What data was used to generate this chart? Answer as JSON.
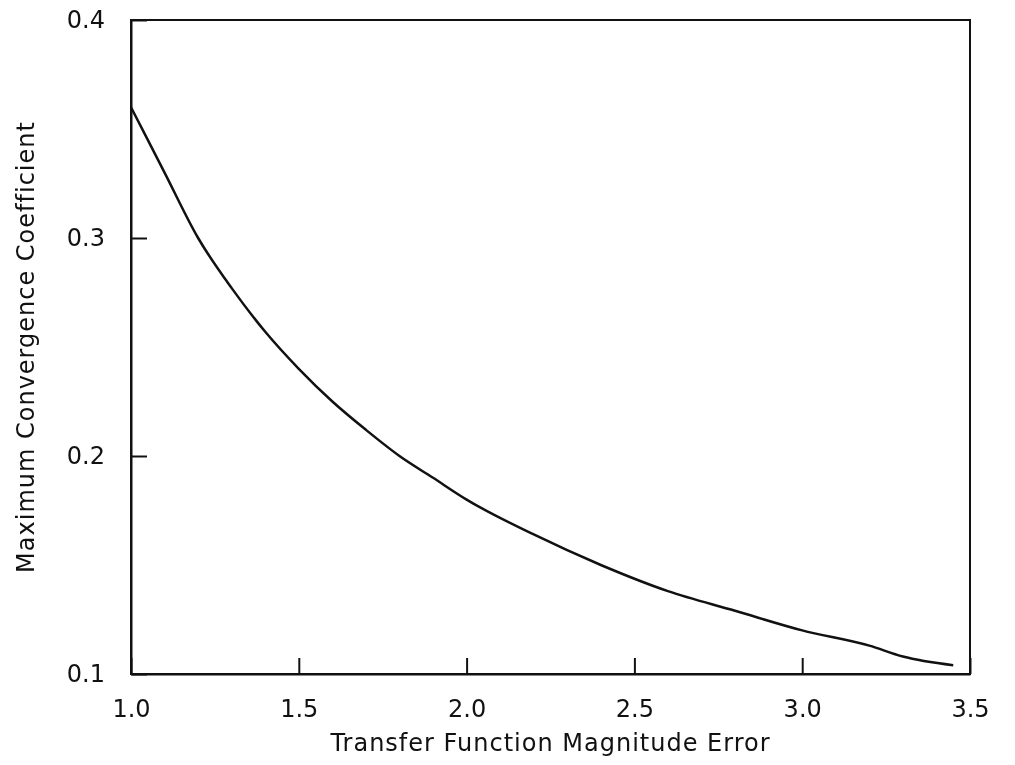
{
  "chart_data": {
    "type": "line",
    "xlabel": "Transfer Function Magnitude Error",
    "ylabel": "Maximum Convergence Coefficient",
    "x": [
      1.0,
      1.1,
      1.2,
      1.3,
      1.4,
      1.5,
      1.6,
      1.7,
      1.8,
      1.9,
      2.0,
      2.2,
      2.4,
      2.6,
      2.8,
      3.0,
      3.2,
      3.3,
      3.45
    ],
    "series": [
      {
        "color": "#111111",
        "values": [
          0.36,
          0.33,
          0.3,
          0.277,
          0.257,
          0.24,
          0.225,
          0.212,
          0.2,
          0.19,
          0.18,
          0.164,
          0.15,
          0.138,
          0.129,
          0.12,
          0.113,
          0.108,
          0.104
        ]
      }
    ],
    "xlim": [
      1.0,
      3.5
    ],
    "ylim": [
      0.1,
      0.4
    ],
    "xticks": [
      {
        "value": 1.0,
        "label": "1.0"
      },
      1.5,
      {
        "value": 2.0,
        "label": "2.0"
      },
      2.5,
      {
        "value": 3.0,
        "label": "3.0"
      },
      3.5
    ],
    "yticks": [
      0.1,
      0.2,
      0.3,
      0.4
    ],
    "marker": "none",
    "line_style": "solid"
  }
}
